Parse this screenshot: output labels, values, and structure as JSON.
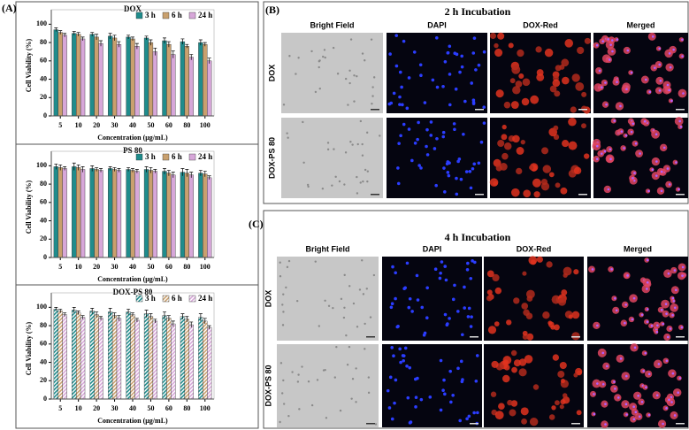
{
  "panel_a_label": "(A)",
  "chart_data": [
    {
      "type": "bar",
      "title": "DOX",
      "xlabel": "Concentration (μg/mL)",
      "ylabel": "Cell Viability (%)",
      "categories": [
        "5",
        "10",
        "20",
        "30",
        "40",
        "50",
        "60",
        "80",
        "100"
      ],
      "ylim": [
        0,
        110
      ],
      "yticks": [
        0,
        20,
        40,
        60,
        80,
        100
      ],
      "hatch": false,
      "legend": "upper right",
      "series": [
        {
          "name": "3 h",
          "color": "#1f8c8c",
          "values": [
            94,
            90,
            89,
            87,
            86,
            85,
            82,
            81,
            80
          ],
          "errors": [
            2,
            2,
            2,
            3,
            2,
            2,
            3,
            3,
            3
          ]
        },
        {
          "name": "6 h",
          "color": "#c9a06e",
          "values": [
            91,
            89,
            86,
            85,
            84,
            80,
            78,
            76,
            78
          ],
          "errors": [
            2,
            2,
            3,
            3,
            2,
            3,
            3,
            2,
            2
          ]
        },
        {
          "name": "24 h",
          "color": "#d7a7d9",
          "values": [
            88,
            84,
            79,
            78,
            76,
            70,
            67,
            64,
            60
          ],
          "errors": [
            2,
            2,
            3,
            3,
            3,
            4,
            4,
            3,
            3
          ]
        }
      ]
    },
    {
      "type": "bar",
      "title": "PS 80",
      "xlabel": "Concentration (μg/mL)",
      "ylabel": "Cell Viability (%)",
      "categories": [
        "5",
        "10",
        "20",
        "30",
        "40",
        "50",
        "60",
        "80",
        "100"
      ],
      "ylim": [
        0,
        110
      ],
      "yticks": [
        0,
        20,
        40,
        60,
        80,
        100
      ],
      "hatch": false,
      "legend": "upper right",
      "series": [
        {
          "name": "3 h",
          "color": "#1f8c8c",
          "values": [
            99,
            99,
            97,
            97,
            96,
            96,
            94,
            93,
            92
          ],
          "errors": [
            3,
            4,
            3,
            2,
            2,
            3,
            3,
            4,
            3
          ]
        },
        {
          "name": "6 h",
          "color": "#c9a06e",
          "values": [
            98,
            98,
            96,
            96,
            95,
            95,
            92,
            92,
            91
          ],
          "errors": [
            3,
            3,
            2,
            2,
            2,
            3,
            3,
            4,
            3
          ]
        },
        {
          "name": "24 h",
          "color": "#d7a7d9",
          "values": [
            97,
            96,
            95,
            95,
            94,
            94,
            90,
            90,
            87
          ],
          "errors": [
            2,
            3,
            2,
            2,
            2,
            2,
            3,
            3,
            2
          ]
        }
      ]
    },
    {
      "type": "bar",
      "title": "DOX-PS 80",
      "xlabel": "Concentration (μg/mL)",
      "ylabel": "Cell Viability (%)",
      "categories": [
        "5",
        "10",
        "20",
        "30",
        "40",
        "50",
        "60",
        "80",
        "100"
      ],
      "ylim": [
        0,
        110
      ],
      "yticks": [
        0,
        20,
        40,
        60,
        80,
        100
      ],
      "hatch": true,
      "legend": "upper right",
      "series": [
        {
          "name": "3 h",
          "color": "#1f8c8c",
          "values": [
            98,
            97,
            96,
            95,
            95,
            93,
            91,
            90,
            89
          ],
          "errors": [
            2,
            3,
            3,
            4,
            3,
            4,
            4,
            3,
            4
          ]
        },
        {
          "name": "6 h",
          "color": "#c9a06e",
          "values": [
            96,
            94,
            92,
            91,
            92,
            90,
            88,
            87,
            85
          ],
          "errors": [
            2,
            2,
            3,
            3,
            2,
            3,
            3,
            3,
            3
          ]
        },
        {
          "name": "24 h",
          "color": "#d7a7d9",
          "values": [
            92,
            89,
            88,
            88,
            86,
            85,
            82,
            81,
            78
          ],
          "errors": [
            2,
            2,
            2,
            3,
            2,
            2,
            3,
            3,
            2
          ]
        }
      ]
    }
  ],
  "panels": [
    {
      "label": "(B)",
      "title": "2 h Incubation",
      "columns": [
        "Bright Field",
        "DAPI",
        "DOX-Red",
        "Merged"
      ],
      "rows": [
        "DOX",
        "DOX-PS 80"
      ]
    },
    {
      "label": "(C)",
      "title": "4 h Incubation",
      "columns": [
        "Bright Field",
        "DAPI",
        "DOX-Red",
        "Merged"
      ],
      "rows": [
        "DOX",
        "DOX-PS 80"
      ]
    }
  ]
}
